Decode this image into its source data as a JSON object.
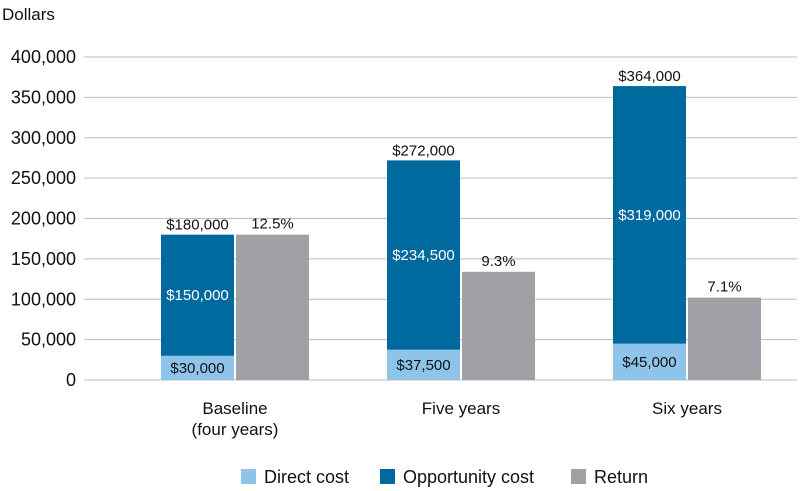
{
  "chart_data": {
    "type": "bar",
    "title": "",
    "ylabel": "Dollars",
    "xlabel": "",
    "ylim": [
      0,
      400000
    ],
    "yticks": [
      0,
      50000,
      100000,
      150000,
      200000,
      250000,
      300000,
      350000,
      400000
    ],
    "ytick_labels": [
      "0",
      "50,000",
      "100,000",
      "150,000",
      "200,000",
      "250,000",
      "300,000",
      "350,000",
      "400,000"
    ],
    "grid": true,
    "legend_position": "bottom",
    "categories": [
      {
        "lines": [
          "Baseline",
          "(four years)"
        ]
      },
      {
        "lines": [
          "Five years"
        ]
      },
      {
        "lines": [
          "Six years"
        ]
      }
    ],
    "stacked_series": [
      {
        "name": "Direct cost",
        "color": "#8ec3ea",
        "values": [
          30000,
          37500,
          45000
        ],
        "labels": [
          "$30,000",
          "$37,500",
          "$45,000"
        ]
      },
      {
        "name": "Opportunity cost",
        "color": "#006a9e",
        "values": [
          150000,
          234500,
          319000
        ],
        "labels": [
          "$150,000",
          "$234,500",
          "$319,000"
        ]
      }
    ],
    "stack_totals": [
      "$180,000",
      "$272,000",
      "$364,000"
    ],
    "return_series": {
      "name": "Return",
      "color": "#a0a1a6",
      "rates": [
        12.5,
        9.3,
        7.1
      ],
      "bar_values": [
        180000,
        134000,
        102000
      ],
      "labels": [
        "12.5%",
        "9.3%",
        "7.1%"
      ]
    }
  }
}
